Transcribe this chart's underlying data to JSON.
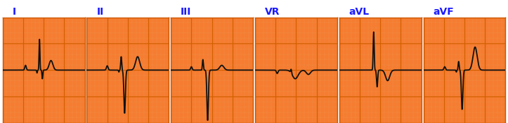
{
  "leads": [
    "I",
    "II",
    "III",
    "VR",
    "aVL",
    "aVF"
  ],
  "bg_color": "#f57c30",
  "grid_major_color": "#d45f00",
  "grid_minor_color": "#f0904a",
  "ecg_color": "#111111",
  "title_color": "#1a1aff",
  "white": "#ffffff",
  "border_color": "#cc5500",
  "n_panels": 6,
  "ecg_ylim": [
    -1.1,
    1.1
  ],
  "label_fontsize": 10
}
